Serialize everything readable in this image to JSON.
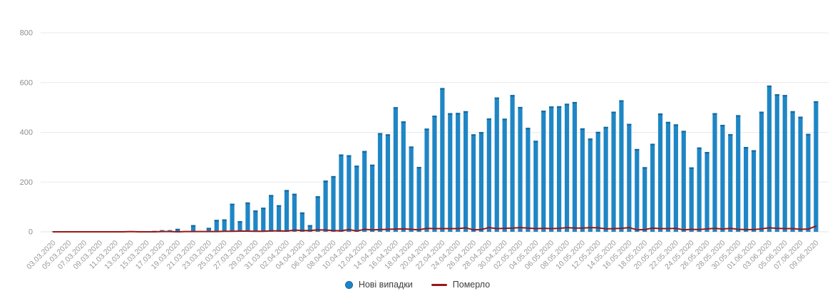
{
  "chart_data": {
    "type": "bar",
    "title": "",
    "xlabel": "",
    "ylabel": "",
    "ylim": [
      0,
      800
    ],
    "yticks": [
      0,
      200,
      400,
      600,
      800
    ],
    "xtick_step": 2,
    "grid": true,
    "legend_position": "bottom-center",
    "colors": {
      "bars": "#1f86c5",
      "bars_cap": "#166a9e",
      "line": "#991717",
      "gridline": "#e9e9e9",
      "zeroline": "#e0e0e0",
      "tick_text": "#8e8e8e",
      "legend_text": "#3c3c3c"
    },
    "x": [
      "03.03.2020",
      "04.03.2020",
      "05.03.2020",
      "06.03.2020",
      "07.03.2020",
      "08.03.2020",
      "09.03.2020",
      "10.03.2020",
      "11.03.2020",
      "12.03.2020",
      "13.03.2020",
      "14.03.2020",
      "15.03.2020",
      "16.03.2020",
      "17.03.2020",
      "18.03.2020",
      "19.03.2020",
      "20.03.2020",
      "21.03.2020",
      "22.03.2020",
      "23.03.2020",
      "24.03.2020",
      "25.03.2020",
      "26.03.2020",
      "27.03.2020",
      "28.03.2020",
      "29.03.2020",
      "30.03.2020",
      "31.03.2020",
      "01.04.2020",
      "02.04.2020",
      "03.04.2020",
      "04.04.2020",
      "05.04.2020",
      "06.04.2020",
      "07.04.2020",
      "08.04.2020",
      "09.04.2020",
      "10.04.2020",
      "11.04.2020",
      "12.04.2020",
      "13.04.2020",
      "14.04.2020",
      "15.04.2020",
      "16.04.2020",
      "17.04.2020",
      "18.04.2020",
      "19.04.2020",
      "20.04.2020",
      "21.04.2020",
      "22.04.2020",
      "23.04.2020",
      "24.04.2020",
      "25.04.2020",
      "26.04.2020",
      "27.04.2020",
      "28.04.2020",
      "29.04.2020",
      "30.04.2020",
      "01.05.2020",
      "02.05.2020",
      "03.05.2020",
      "04.05.2020",
      "05.05.2020",
      "06.05.2020",
      "07.05.2020",
      "08.05.2020",
      "09.05.2020",
      "10.05.2020",
      "11.05.2020",
      "12.05.2020",
      "13.05.2020",
      "14.05.2020",
      "15.05.2020",
      "16.05.2020",
      "17.05.2020",
      "18.05.2020",
      "19.05.2020",
      "20.05.2020",
      "21.05.2020",
      "22.05.2020",
      "23.05.2020",
      "24.05.2020",
      "25.05.2020",
      "26.05.2020",
      "27.05.2020",
      "28.05.2020",
      "29.05.2020",
      "30.05.2020",
      "31.05.2020",
      "01.06.2020",
      "02.06.2020",
      "03.06.2020",
      "04.06.2020",
      "05.06.2020",
      "06.06.2020",
      "07.06.2020",
      "08.06.2020",
      "09.06.2020"
    ],
    "series": [
      {
        "name": "Нові випадки",
        "type": "bar",
        "color": "#1f86c5",
        "values": [
          1,
          0,
          0,
          0,
          0,
          0,
          0,
          0,
          0,
          1,
          1,
          0,
          0,
          4,
          7,
          7,
          12,
          3,
          27,
          3,
          16,
          48,
          50,
          113,
          43,
          118,
          86,
          97,
          148,
          107,
          168,
          153,
          78,
          27,
          143,
          206,
          224,
          311,
          308,
          266,
          325,
          270,
          397,
          392,
          501,
          444,
          343,
          261,
          415,
          467,
          578,
          477,
          478,
          485,
          392,
          401,
          456,
          540,
          455,
          550,
          502,
          418,
          366,
          487,
          504,
          505,
          515,
          522,
          416,
          375,
          402,
          422,
          483,
          529,
          434,
          333,
          260,
          354,
          476,
          442,
          432,
          406,
          259,
          339,
          321,
          477,
          430,
          393,
          469,
          341,
          328,
          483,
          588,
          553,
          550,
          485,
          463,
          394,
          525
        ]
      },
      {
        "name": "Померло",
        "type": "line",
        "color": "#991717",
        "values": [
          0,
          0,
          0,
          0,
          0,
          0,
          0,
          0,
          0,
          0,
          1,
          0,
          0,
          0,
          1,
          1,
          0,
          1,
          1,
          1,
          1,
          1,
          2,
          2,
          3,
          3,
          2,
          2,
          4,
          4,
          3,
          7,
          5,
          5,
          8,
          7,
          5,
          4,
          9,
          3,
          10,
          8,
          9,
          10,
          11,
          12,
          10,
          8,
          14,
          13,
          13,
          13,
          13,
          16,
          8,
          9,
          17,
          13,
          14,
          15,
          17,
          15,
          13,
          14,
          13,
          14,
          17,
          15,
          15,
          17,
          16,
          12,
          13,
          14,
          17,
          8,
          9,
          15,
          13,
          13,
          14,
          8,
          10,
          9,
          12,
          14,
          11,
          14,
          10,
          9,
          9,
          12,
          16,
          14,
          13,
          13,
          10,
          11,
          23
        ]
      }
    ],
    "legend": {
      "cases_label": "Нові випадки",
      "deaths_label": "Померло"
    }
  }
}
